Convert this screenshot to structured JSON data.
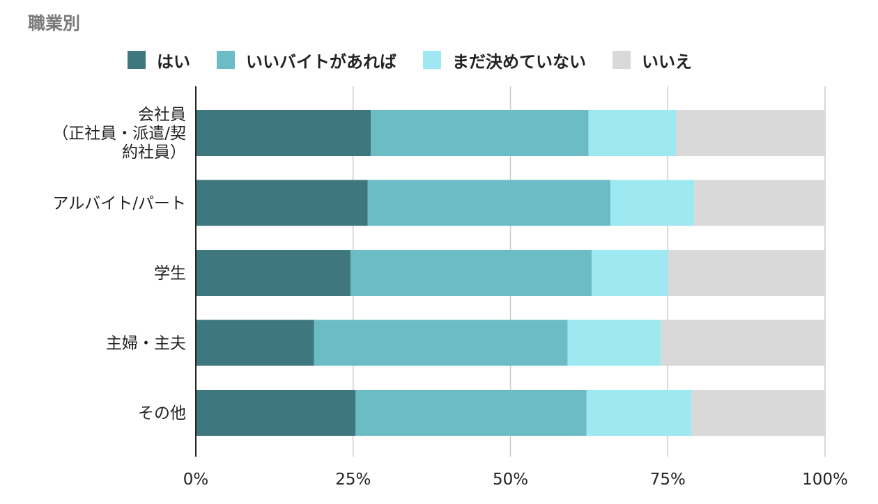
{
  "chart_data": {
    "type": "bar",
    "orientation": "horizontal",
    "stacked": "percent",
    "title": "職業別",
    "categories": [
      [
        "会社員",
        "（正社員・派遣/契",
        "約社員）"
      ],
      [
        "アルバイト/パート"
      ],
      [
        "学生"
      ],
      [
        "主婦・主夫"
      ],
      [
        "その他"
      ]
    ],
    "series": [
      {
        "name": "はい",
        "color": "#3e787e",
        "values": [
          27.8,
          27.3,
          24.6,
          18.8,
          25.4
        ]
      },
      {
        "name": "いいバイトがあれば",
        "color": "#6bbcc4",
        "values": [
          34.6,
          38.6,
          38.3,
          40.3,
          36.7
        ]
      },
      {
        "name": "まだ決めていない",
        "color": "#9ee8f1",
        "values": [
          13.9,
          13.3,
          12.1,
          14.8,
          16.7
        ]
      },
      {
        "name": "いいえ",
        "color": "#d9d9d9",
        "values": [
          23.7,
          20.8,
          25.0,
          26.1,
          21.2
        ]
      }
    ],
    "xticks": [
      "0%",
      "25%",
      "50%",
      "75%",
      "100%"
    ],
    "xlim": [
      0,
      100
    ],
    "grid": true,
    "legend_position": "top"
  }
}
